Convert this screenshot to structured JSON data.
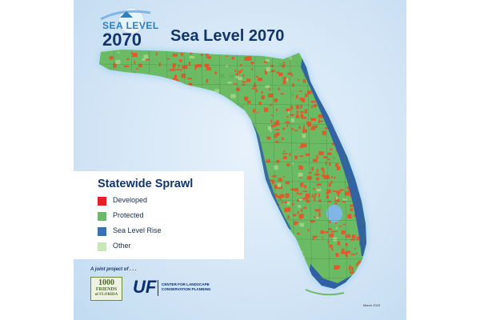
{
  "logo": {
    "sea_text": "SEA LEVEL",
    "year_text": "2070"
  },
  "title": "Sea Level 2070",
  "legend": {
    "title": "Statewide Sprawl",
    "items": [
      {
        "label": "Developed",
        "color": "#e32227"
      },
      {
        "label": "Protected",
        "color": "#6cb96a"
      },
      {
        "label": "Sea Level Rise",
        "color": "#3d6fb4"
      },
      {
        "label": "Other",
        "color": "#c9e7b7"
      }
    ]
  },
  "credits": {
    "joint_label": "A joint project of . . .",
    "friends_logo": {
      "line1": "1000",
      "line2": "FRIENDS",
      "line3": "of FLORIDA"
    },
    "uf_mark": "UF",
    "uf_line1": "CENTER FOR LANDSCAPE",
    "uf_line2": "CONSERVATION PLANNING"
  },
  "date_label": "March 2023",
  "colors": {
    "developed": "#e05a2b",
    "protected": "#5fb35d",
    "other": "#9fd184",
    "sea_level_rise": "#2e5fa8",
    "title": "#12356b"
  }
}
